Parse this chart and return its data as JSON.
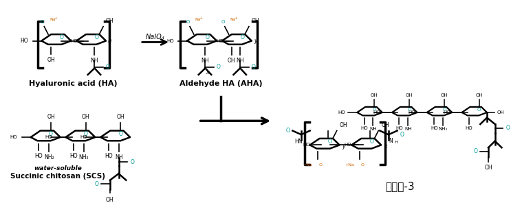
{
  "bg_color": "#ffffff",
  "fig_width": 7.43,
  "fig_height": 2.96,
  "dpi": 100,
  "labels": {
    "ha_label": "Hyaluronic acid (HA)",
    "aha_label": "Aldehyde HA (AHA)",
    "scs_label_line1": "water-soluble",
    "scs_label_line2": "Succinic chitosan (SCS)",
    "product_label": "케토산-3",
    "reagent_top": "NaIO₄"
  },
  "colors": {
    "black": "#000000",
    "cyan": "#009999",
    "orange": "#cc6600"
  }
}
